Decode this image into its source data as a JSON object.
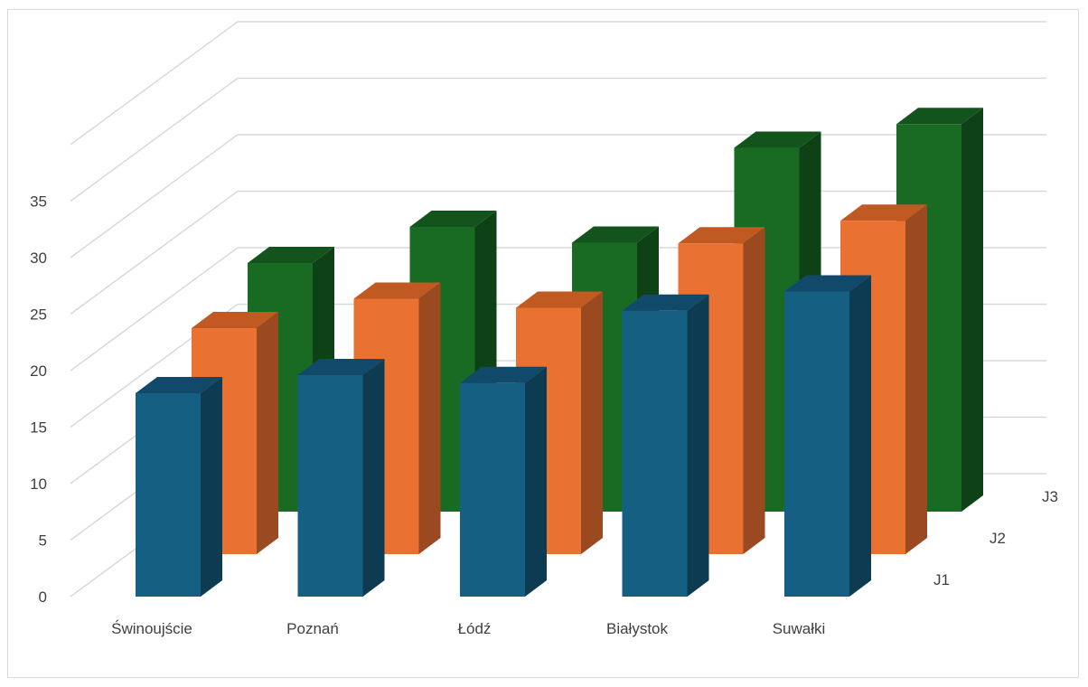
{
  "chart_data": {
    "type": "bar",
    "subtype": "3d-column",
    "title": "",
    "xlabel": "",
    "ylabel": "",
    "ylim": [
      0,
      35
    ],
    "yticks": [
      0,
      5,
      10,
      15,
      20,
      25,
      30,
      35
    ],
    "categories": [
      "Świnoujście",
      "Poznań",
      "Łódź",
      "Białystok",
      "Suwałki"
    ],
    "series": [
      {
        "name": "J1",
        "values": [
          18,
          19.6,
          18.9,
          25.3,
          27
        ],
        "colors": {
          "front": "#156082",
          "side": "#0d3c52",
          "top": "#10496a"
        }
      },
      {
        "name": "J2",
        "values": [
          20,
          22.6,
          21.8,
          27.5,
          29.5
        ],
        "colors": {
          "front": "#e97132",
          "side": "#9a4920",
          "top": "#c05a22"
        }
      },
      {
        "name": "J3",
        "values": [
          22,
          25.2,
          23.8,
          32.2,
          34.3
        ],
        "colors": {
          "front": "#196b24",
          "side": "#0f4117",
          "top": "#12541b"
        }
      }
    ],
    "grid": true,
    "legend": "none"
  }
}
